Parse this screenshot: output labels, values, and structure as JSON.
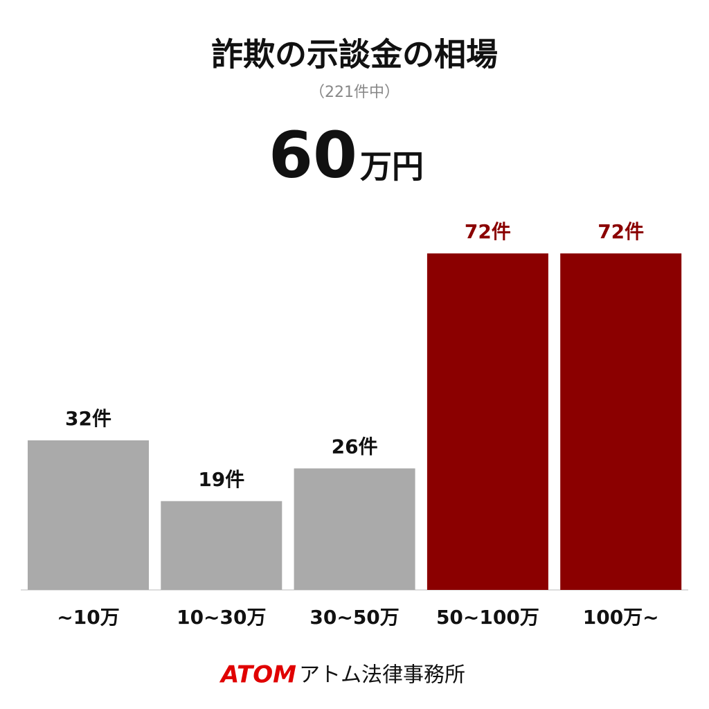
{
  "chart_data": {
    "type": "bar",
    "title": "詐欺の示談金の相場",
    "subtitle": "（221件中）",
    "headline": "60",
    "headline_unit": "万円",
    "categories": [
      "~10万",
      "10~30万",
      "30~50万",
      "50~100万",
      "100万~"
    ],
    "values": [
      32,
      19,
      26,
      72,
      72
    ],
    "value_labels": [
      "32件",
      "19件",
      "26件",
      "72件",
      "72件"
    ],
    "colors": [
      "#aaaaaa",
      "#aaaaaa",
      "#aaaaaa",
      "#8b0000",
      "#8b0000"
    ],
    "label_colors": [
      "#111111",
      "#111111",
      "#111111",
      "#8b0000",
      "#8b0000"
    ],
    "footer_brand": "ATOM",
    "footer_text": "アトム法律事務所"
  }
}
